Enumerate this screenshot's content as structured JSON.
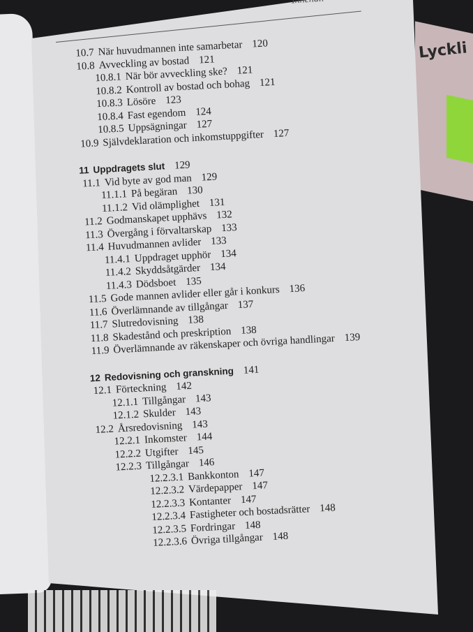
{
  "running_head": "Innehåll",
  "other_book_title": "Lyckli",
  "entries": [
    {
      "num": "10.7",
      "title": "När huvudmannen inte samarbetar",
      "page": "120"
    },
    {
      "num": "10.8",
      "title": "Avveckling av bostad",
      "page": "121"
    },
    {
      "num": "10.8.1",
      "title": "När bör avveckling ske?",
      "page": "121"
    },
    {
      "num": "10.8.2",
      "title": "Kontroll av bostad och bohag",
      "page": "121"
    },
    {
      "num": "10.8.3",
      "title": "Lösöre",
      "page": "123"
    },
    {
      "num": "10.8.4",
      "title": "Fast egendom",
      "page": "124"
    },
    {
      "num": "10.8.5",
      "title": "Uppsägningar",
      "page": "127"
    },
    {
      "num": "10.9",
      "title": "Självdeklaration och inkomstuppgifter",
      "page": "127"
    },
    {
      "num": "11",
      "title": "Uppdragets slut",
      "page": "129"
    },
    {
      "num": "11.1",
      "title": "Vid byte av god man",
      "page": "129"
    },
    {
      "num": "11.1.1",
      "title": "På begäran",
      "page": "130"
    },
    {
      "num": "11.1.2",
      "title": "Vid olämplighet",
      "page": "131"
    },
    {
      "num": "11.2",
      "title": "Godmanskapet upphävs",
      "page": "132"
    },
    {
      "num": "11.3",
      "title": "Övergång i förvaltarskap",
      "page": "133"
    },
    {
      "num": "11.4",
      "title": "Huvudmannen avlider",
      "page": "133"
    },
    {
      "num": "11.4.1",
      "title": "Uppdraget upphör",
      "page": "134"
    },
    {
      "num": "11.4.2",
      "title": "Skyddsåtgärder",
      "page": "134"
    },
    {
      "num": "11.4.3",
      "title": "Dödsboet",
      "page": "135"
    },
    {
      "num": "11.5",
      "title": "Gode mannen avlider eller går i konkurs",
      "page": "136"
    },
    {
      "num": "11.6",
      "title": "Överlämnande av tillgångar",
      "page": "137"
    },
    {
      "num": "11.7",
      "title": "Slutredovisning",
      "page": "138"
    },
    {
      "num": "11.8",
      "title": "Skadestånd och preskription",
      "page": "138"
    },
    {
      "num": "11.9",
      "title": "Överlämnande av räkenskaper och övriga handlingar",
      "page": "139"
    },
    {
      "num": "12",
      "title": "Redovisning och granskning",
      "page": "141"
    },
    {
      "num": "12.1",
      "title": "Förteckning",
      "page": "142"
    },
    {
      "num": "12.1.1",
      "title": "Tillgångar",
      "page": "143"
    },
    {
      "num": "12.1.2",
      "title": "Skulder",
      "page": "143"
    },
    {
      "num": "12.2",
      "title": "Årsredovisning",
      "page": "143"
    },
    {
      "num": "12.2.1",
      "title": "Inkomster",
      "page": "144"
    },
    {
      "num": "12.2.2",
      "title": "Utgifter",
      "page": "145"
    },
    {
      "num": "12.2.3",
      "title": "Tillgångar",
      "page": "146"
    },
    {
      "num": "12.2.3.1",
      "title": "Bankkonton",
      "page": "147"
    },
    {
      "num": "12.2.3.2",
      "title": "Värdepapper",
      "page": "147"
    },
    {
      "num": "12.2.3.3",
      "title": "Kontanter",
      "page": "147"
    },
    {
      "num": "12.2.3.4",
      "title": "Fastigheter och bostadsrätter",
      "page": "148"
    },
    {
      "num": "12.2.3.5",
      "title": "Fordringar",
      "page": "148"
    },
    {
      "num": "12.2.3.6",
      "title": "Övriga tillgångar",
      "page": "148"
    }
  ]
}
